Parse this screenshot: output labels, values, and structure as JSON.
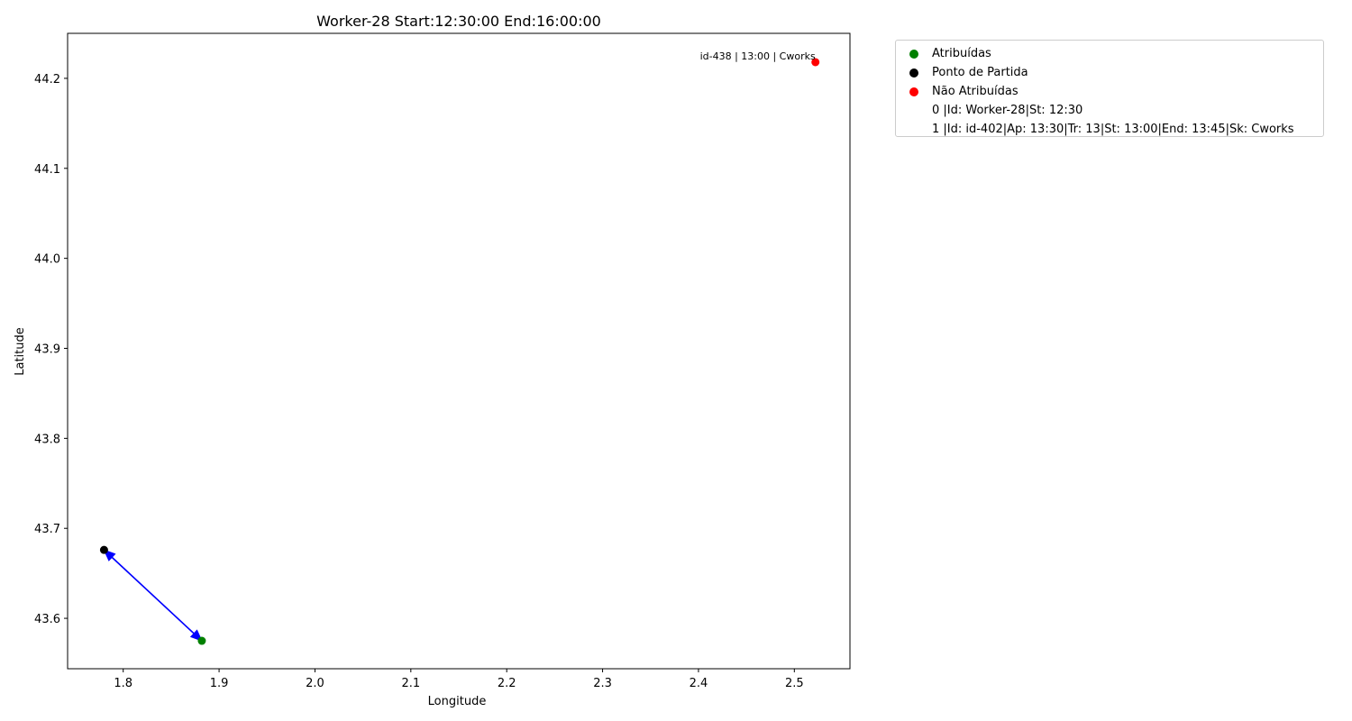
{
  "chart_data": {
    "type": "scatter",
    "title": "Worker-28 Start:12:30:00 End:16:00:00",
    "xlabel": "Longitude",
    "ylabel": "Latitude",
    "xlim": [
      1.742,
      2.558
    ],
    "ylim": [
      43.544,
      44.25
    ],
    "xticks": [
      "1.8",
      "1.9",
      "2.0",
      "2.1",
      "2.2",
      "2.3",
      "2.4",
      "2.5"
    ],
    "xtick_values": [
      1.8,
      1.9,
      2.0,
      2.1,
      2.2,
      2.3,
      2.4,
      2.5
    ],
    "yticks": [
      "43.6",
      "43.7",
      "43.8",
      "43.9",
      "44.0",
      "44.1",
      "44.2"
    ],
    "ytick_values": [
      43.6,
      43.7,
      43.8,
      43.9,
      44.0,
      44.1,
      44.2
    ],
    "grid": false,
    "legend_placement": "outside-upper-right",
    "series": [
      {
        "name": "Atribuídas",
        "color": "#008000",
        "points": [
          {
            "x": 1.882,
            "y": 43.575
          }
        ]
      },
      {
        "name": "Ponto de Partida",
        "color": "#000000",
        "points": [
          {
            "x": 1.78,
            "y": 43.676
          }
        ]
      },
      {
        "name": "Não Atribuídas",
        "color": "#ff0000",
        "points": [
          {
            "x": 2.522,
            "y": 44.218
          }
        ]
      }
    ],
    "route_arrows": {
      "color": "#0000ff",
      "segments": [
        {
          "from": {
            "x": 1.78,
            "y": 43.676
          },
          "to": {
            "x": 1.882,
            "y": 43.575
          }
        },
        {
          "from": {
            "x": 1.882,
            "y": 43.575
          },
          "to": {
            "x": 1.78,
            "y": 43.676
          }
        }
      ]
    },
    "annotations": [
      {
        "text": "id-438 | 13:00 | Cworks",
        "x": 2.522,
        "y": 44.218
      }
    ],
    "legend_entries": [
      {
        "label": "Atribuídas",
        "color": "#008000",
        "marker": "dot"
      },
      {
        "label": "Ponto de Partida",
        "color": "#000000",
        "marker": "dot"
      },
      {
        "label": "Não Atribuídas",
        "color": "#ff0000",
        "marker": "dot"
      },
      {
        "label": "0 |Id: Worker-28|St: 12:30",
        "color": "",
        "marker": "none"
      },
      {
        "label": "1 |Id: id-402|Ap: 13:30|Tr: 13|St: 13:00|End: 13:45|Sk: Cworks",
        "color": "",
        "marker": "none"
      }
    ]
  }
}
